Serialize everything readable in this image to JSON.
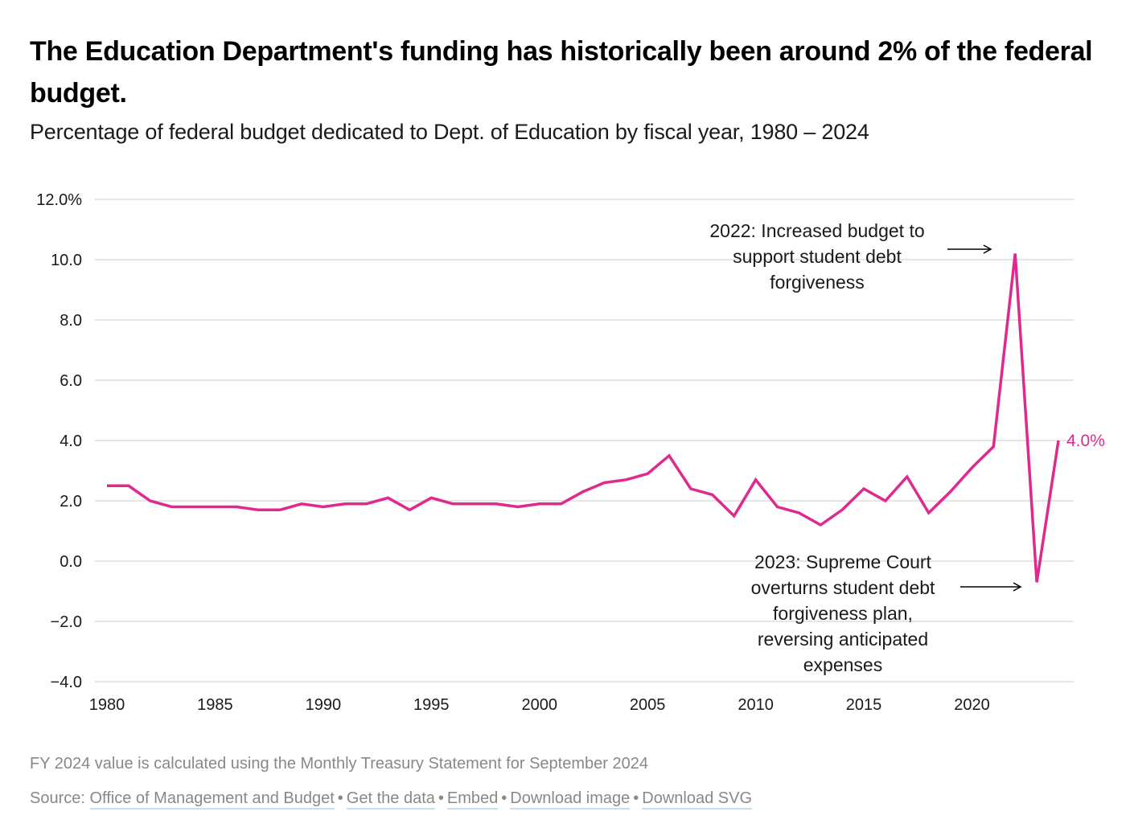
{
  "header": {
    "title": "The Education Department's funding has historically been around 2% of the federal budget.",
    "subtitle": "Percentage of federal budget dedicated to Dept. of Education by fiscal year, 1980 – 2024"
  },
  "colors": {
    "line": "#e0298f",
    "grid": "#dddddd",
    "text": "#1a1a1a",
    "muted": "#888888",
    "link_underline": "#c6dfe8"
  },
  "chart_data": {
    "type": "line",
    "title": "The Education Department's funding has historically been around 2% of the federal budget.",
    "subtitle": "Percentage of federal budget dedicated to Dept. of Education by fiscal year, 1980 – 2024",
    "xlabel": "",
    "ylabel": "",
    "x": [
      1980,
      1981,
      1982,
      1983,
      1984,
      1985,
      1986,
      1987,
      1988,
      1989,
      1990,
      1991,
      1992,
      1993,
      1994,
      1995,
      1996,
      1997,
      1998,
      1999,
      2000,
      2001,
      2002,
      2003,
      2004,
      2005,
      2006,
      2007,
      2008,
      2009,
      2010,
      2011,
      2012,
      2013,
      2014,
      2015,
      2016,
      2017,
      2018,
      2019,
      2020,
      2021,
      2022,
      2023,
      2024
    ],
    "series": [
      {
        "name": "Dept. of Education share of federal budget (%)",
        "values": [
          2.5,
          2.5,
          2.0,
          1.8,
          1.8,
          1.8,
          1.8,
          1.7,
          1.7,
          1.9,
          1.8,
          1.9,
          1.9,
          2.1,
          1.7,
          2.1,
          1.9,
          1.9,
          1.9,
          1.8,
          1.9,
          1.9,
          2.3,
          2.6,
          2.7,
          2.9,
          3.5,
          2.4,
          2.2,
          1.5,
          2.7,
          1.8,
          1.6,
          1.2,
          1.7,
          2.4,
          2.0,
          2.8,
          1.6,
          2.3,
          3.1,
          3.8,
          10.2,
          -0.7,
          4.0
        ]
      }
    ],
    "xlim": [
      1980,
      2024
    ],
    "ylim": [
      -4,
      12
    ],
    "x_ticks": [
      "1980",
      "1985",
      "1990",
      "1995",
      "2000",
      "2005",
      "2010",
      "2015",
      "2020"
    ],
    "y_ticks": [
      "12.0%",
      "10.0",
      "8.0",
      "6.0",
      "4.0",
      "2.0",
      "0.0",
      "−2.0",
      "−4.0"
    ],
    "y_tick_values": [
      12,
      10,
      8,
      6,
      4,
      2,
      0,
      -2,
      -4
    ],
    "grid": true,
    "end_label": "4.0%",
    "annotations": [
      {
        "year": 2022,
        "lines": [
          "2022: Increased budget to",
          "support student debt",
          "forgiveness"
        ]
      },
      {
        "year": 2023,
        "lines": [
          "2023: Supreme Court",
          "overturns student debt",
          "forgiveness plan,",
          "reversing anticipated",
          "expenses"
        ]
      }
    ]
  },
  "footer": {
    "note": "FY 2024 value is calculated using the Monthly Treasury Statement for September 2024",
    "source_label": "Source:",
    "source_link": "Office of Management and Budget",
    "separator": "•",
    "links": [
      "Get the data",
      "Embed",
      "Download image",
      "Download SVG"
    ]
  }
}
